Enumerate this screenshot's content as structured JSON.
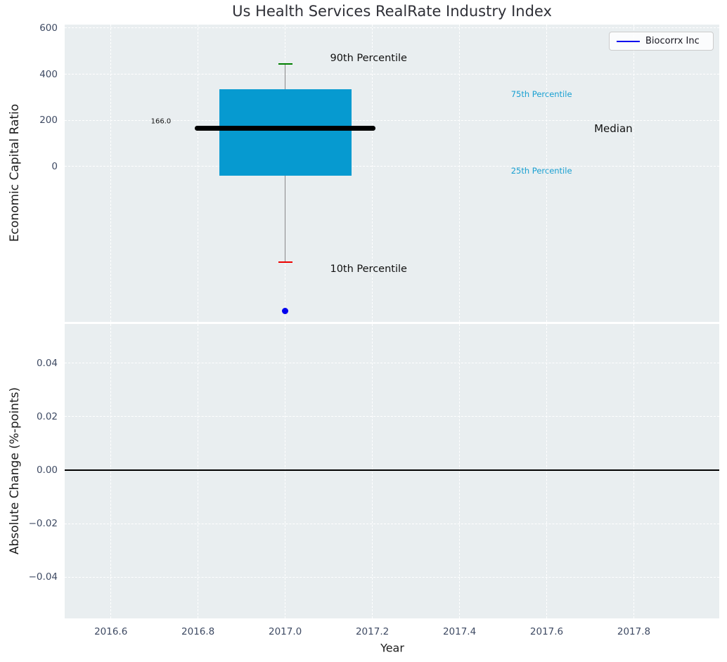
{
  "title": "Us Health Services RealRate Industry Index",
  "legend": {
    "label": "Biocorrx Inc",
    "line_color": "#0000ee"
  },
  "colors": {
    "plot_bg": "#e9eef0",
    "grid": "#ffffff",
    "tick": "#3e4a63",
    "box_fill": "#069ad0",
    "whisker": "#888888",
    "cap_90": "#008000",
    "cap_10": "#ee0000",
    "median_line": "#000000",
    "point": "#0000ee",
    "cyan_text": "#189fd1",
    "annotation_text": "#111111",
    "zero_line": "#000000"
  },
  "chart_data": [
    {
      "type": "box",
      "title": "Us Health Services RealRate Industry Index",
      "ylabel": "Economic Capital Ratio",
      "xlim": [
        2016.494,
        2017.996
      ],
      "ylim": [
        -673,
        615
      ],
      "grid": true,
      "legend_entries": [
        "Biocorrx Inc"
      ],
      "legend_position": "upper right",
      "yticks": [
        {
          "v": 600,
          "label": "600"
        },
        {
          "v": 400,
          "label": "400"
        },
        {
          "v": 200,
          "label": "200"
        },
        {
          "v": 0,
          "label": "0"
        }
      ],
      "box": {
        "x": 2017.0,
        "p10": -414,
        "p25": -40,
        "median": 166,
        "p75": 335,
        "p90": 444,
        "box_halfwidth": 0.1515,
        "median_halfwidth": 0.2075,
        "cap_halfwidth": 0.016
      },
      "point": {
        "x": 2017.0,
        "y": -627,
        "series": "Biocorrx Inc"
      },
      "annotations": [
        {
          "text": "90th Percentile",
          "x": 2017.103,
          "y": 469,
          "size": 14.5,
          "color_key": "annotation_text",
          "align": "left"
        },
        {
          "text": "75th Percentile",
          "x": 2017.518,
          "y": 314,
          "size": 11.5,
          "color_key": "cyan_text",
          "align": "left"
        },
        {
          "text": "166.0",
          "x": 2016.738,
          "y": 196,
          "size": 10,
          "color_key": "annotation_text",
          "align": "right"
        },
        {
          "text": "Median",
          "x": 2017.709,
          "y": 164,
          "size": 15,
          "color_key": "annotation_text",
          "align": "left"
        },
        {
          "text": "25th Percentile",
          "x": 2017.518,
          "y": -18,
          "size": 11.5,
          "color_key": "cyan_text",
          "align": "left"
        },
        {
          "text": "10th Percentile",
          "x": 2017.103,
          "y": -445,
          "size": 14.5,
          "color_key": "annotation_text",
          "align": "left"
        }
      ]
    },
    {
      "type": "line",
      "ylabel": "Absolute Change (%-points)",
      "xlabel": "Year",
      "xlim": [
        2016.494,
        2017.996
      ],
      "ylim": [
        -0.0555,
        0.0547
      ],
      "grid": true,
      "zero_line": 0.0,
      "yticks": [
        {
          "v": 0.04,
          "label": "0.04"
        },
        {
          "v": 0.02,
          "label": "0.02"
        },
        {
          "v": 0.0,
          "label": "0.00"
        },
        {
          "v": -0.02,
          "label": "−0.02"
        },
        {
          "v": -0.04,
          "label": "−0.04"
        }
      ],
      "xticks": [
        {
          "v": 2016.6,
          "label": "2016.6"
        },
        {
          "v": 2016.8,
          "label": "2016.8"
        },
        {
          "v": 2017.0,
          "label": "2017.0"
        },
        {
          "v": 2017.2,
          "label": "2017.2"
        },
        {
          "v": 2017.4,
          "label": "2017.4"
        },
        {
          "v": 2017.6,
          "label": "2017.6"
        },
        {
          "v": 2017.8,
          "label": "2017.8"
        }
      ]
    }
  ]
}
